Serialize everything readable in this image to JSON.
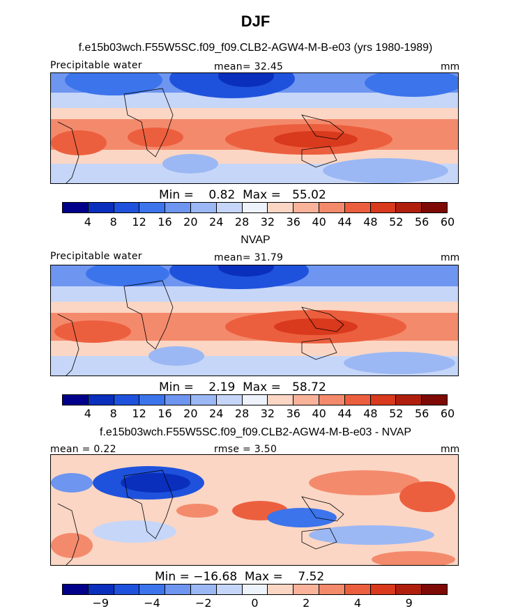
{
  "figure": {
    "title": "DJF"
  },
  "panels": [
    {
      "title": "f.e15b03wch.F55W5SC.f09_f09.CLB2-AGW4-M-B-e03 (yrs 1980-1989)",
      "left_label": "Precipitable water",
      "center_label": "mean=  32.45",
      "right_label": "mm",
      "minmax_label": "Min =    0.82  Max =   55.02",
      "colorbar_ticks": [
        "4",
        "8",
        "12",
        "16",
        "20",
        "24",
        "28",
        "32",
        "36",
        "40",
        "44",
        "48",
        "52",
        "56",
        "60"
      ]
    },
    {
      "title": "NVAP",
      "left_label": "Precipitable water",
      "center_label": "mean=  31.79",
      "right_label": "mm",
      "minmax_label": "Min =    2.19  Max =   58.72",
      "colorbar_ticks": [
        "4",
        "8",
        "12",
        "16",
        "20",
        "24",
        "28",
        "32",
        "36",
        "40",
        "44",
        "48",
        "52",
        "56",
        "60"
      ]
    },
    {
      "title": "f.e15b03wch.F55W5SC.f09_f09.CLB2-AGW4-M-B-e03 - NVAP",
      "left_label": "mean =    0.22",
      "center_label": "rmse =    3.50",
      "right_label": "mm",
      "minmax_label": "Min = −16.68  Max =    7.52",
      "colorbar_ticks": [
        "−9",
        "−4",
        "−2",
        "0",
        "2",
        "4",
        "9"
      ]
    }
  ],
  "colorbar_colors": [
    "#00008b",
    "#0a2fbd",
    "#1f52dc",
    "#3c74ec",
    "#6e95f0",
    "#9bb8f4",
    "#c6d6f8",
    "#eef2fb",
    "#fbd6c4",
    "#f9b39a",
    "#f48a6c",
    "#ec5f3e",
    "#d9391c",
    "#b01f0e",
    "#7d0a05"
  ],
  "chart_data": {
    "type": "heatmap",
    "maps": [
      {
        "name": "f.e15b03wch.F55W5SC.f09_f09.CLB2-AGW4-M-B-e03 (yrs 1980-1989)",
        "mean": 32.45,
        "min": 0.82,
        "max": 55.02,
        "units": "mm",
        "levels": [
          4,
          8,
          12,
          16,
          20,
          24,
          28,
          32,
          36,
          40,
          44,
          48,
          52,
          56,
          60
        ]
      },
      {
        "name": "NVAP",
        "mean": 31.79,
        "min": 2.19,
        "max": 58.72,
        "units": "mm",
        "levels": [
          4,
          8,
          12,
          16,
          20,
          24,
          28,
          32,
          36,
          40,
          44,
          48,
          52,
          56,
          60
        ]
      },
      {
        "name": "f.e15b03wch.F55W5SC.f09_f09.CLB2-AGW4-M-B-e03 - NVAP",
        "mean": 0.22,
        "rmse": 3.5,
        "min": -16.68,
        "max": 7.52,
        "units": "mm",
        "levels": [
          -9,
          -4,
          -2,
          0,
          2,
          4,
          9
        ]
      }
    ]
  }
}
